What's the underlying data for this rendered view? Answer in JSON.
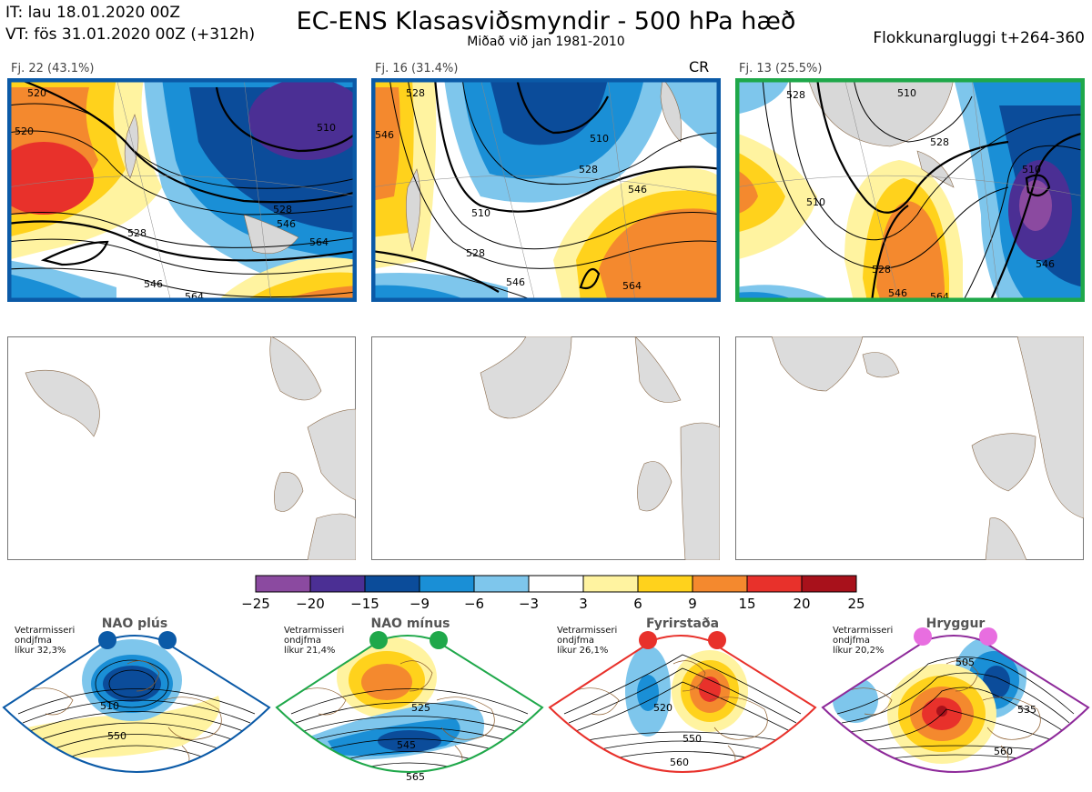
{
  "header": {
    "it": "IT: lau 18.01.2020 00Z",
    "vt": "VT: fös 31.01.2020 00Z  (+312h)",
    "title": "EC-ENS Klasasviðsmyndir - 500 hPa hæð",
    "subtitle": "Miðað við jan 1981-2010",
    "window": "Flokkunargluggi t+264-360"
  },
  "clusters": [
    {
      "label": "Fj. 22 (43.1%)",
      "frame_color": "#0b5aa7",
      "contours": [
        "520",
        "520",
        "510",
        "528",
        "546",
        "564",
        "528",
        "546",
        "564"
      ]
    },
    {
      "label": "Fj. 16 (31.4%)",
      "tag": "CR",
      "frame_color": "#0b5aa7",
      "contours": [
        "528",
        "546",
        "510",
        "528",
        "546",
        "510",
        "528",
        "546",
        "564"
      ]
    },
    {
      "label": "Fj. 13 (25.5%)",
      "frame_color": "#1fa84a",
      "contours": [
        "528",
        "510",
        "528",
        "510",
        "528",
        "546",
        "564",
        "546",
        "510"
      ]
    }
  ],
  "colorbar": {
    "ticks": [
      "−25",
      "−20",
      "−15",
      "−9",
      "−6",
      "−3",
      "3",
      "6",
      "9",
      "15",
      "20",
      "25"
    ],
    "colors": [
      "#8b4aa0",
      "#4b2f94",
      "#0b4c9a",
      "#1a8fd6",
      "#7ec6ec",
      "#ffffff",
      "#fff3a0",
      "#ffd21c",
      "#f4892e",
      "#e8312b",
      "#a8111b"
    ]
  },
  "regimes": [
    {
      "name": "NAO plús",
      "info": "Vetrarmisseri\nondjfma\nlíkur 32,3%",
      "color": "#0b5aa7",
      "contours": [
        "510",
        "550"
      ]
    },
    {
      "name": "NAO mínus",
      "info": "Vetrarmisseri\nondjfma\nlíkur 21,4%",
      "color": "#1fa84a",
      "contours": [
        "525",
        "545",
        "565"
      ]
    },
    {
      "name": "Fyrirstaða",
      "info": "Vetrarmisseri\nondjfma\nlíkur 26,1%",
      "color": "#e8312b",
      "contours": [
        "520",
        "550",
        "560"
      ]
    },
    {
      "name": "Hryggur",
      "info": "Vetrarmisseri\nondjfma\nlíkur 20,2%",
      "color": "#e86ee0",
      "contours": [
        "505",
        "535",
        "560"
      ]
    }
  ]
}
